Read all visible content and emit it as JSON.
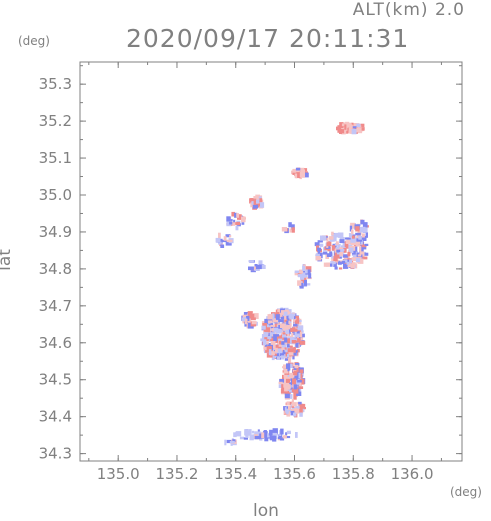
{
  "header": {
    "altitude_label": "ALT(km) 2.0",
    "timestamp": "2020/09/17 20:11:31"
  },
  "axes": {
    "y_unit": "(deg)",
    "x_unit": "(deg)",
    "x_title": "lon",
    "y_title": "lat"
  },
  "chart_data": {
    "type": "heatmap",
    "title": "2020/09/17 20:11:31",
    "xlabel": "lon",
    "ylabel": "lat",
    "xlim": [
      134.87,
      136.17
    ],
    "ylim": [
      34.28,
      35.36
    ],
    "x_ticks": [
      135.0,
      135.2,
      135.4,
      135.6,
      135.8,
      136.0
    ],
    "x_tick_labels": [
      "135.0",
      "135.2",
      "135.4",
      "135.6",
      "135.8",
      "136.0"
    ],
    "y_ticks": [
      34.3,
      34.4,
      34.5,
      34.6,
      34.7,
      34.8,
      34.9,
      35.0,
      35.1,
      35.2,
      35.3
    ],
    "y_tick_labels": [
      "34.3",
      "34.4",
      "34.5",
      "34.6",
      "34.7",
      "34.8",
      "34.9",
      "35.0",
      "35.1",
      "35.2",
      "35.3"
    ],
    "grid": false,
    "colors": {
      "positive": "#f08a8a",
      "negative": "#7f86f0",
      "light_positive": "#f7c4c4",
      "light_negative": "#c3c6f7"
    },
    "clusters": [
      {
        "lon": 135.79,
        "lat": 35.18,
        "r_lon": 0.05,
        "r_lat": 0.012,
        "n": 60,
        "pink": 0.95
      },
      {
        "lon": 135.62,
        "lat": 35.06,
        "r_lon": 0.025,
        "r_lat": 0.012,
        "n": 30,
        "pink": 0.9
      },
      {
        "lon": 135.47,
        "lat": 34.98,
        "r_lon": 0.025,
        "r_lat": 0.015,
        "n": 30,
        "pink": 0.85
      },
      {
        "lon": 135.4,
        "lat": 34.93,
        "r_lon": 0.03,
        "r_lat": 0.02,
        "n": 25,
        "pink": 0.5
      },
      {
        "lon": 135.36,
        "lat": 34.88,
        "r_lon": 0.025,
        "r_lat": 0.02,
        "n": 15,
        "pink": 0.4
      },
      {
        "lon": 135.58,
        "lat": 34.91,
        "r_lon": 0.02,
        "r_lat": 0.01,
        "n": 8,
        "pink": 0.5
      },
      {
        "lon": 135.76,
        "lat": 34.85,
        "r_lon": 0.09,
        "r_lat": 0.05,
        "n": 170,
        "pink": 0.35
      },
      {
        "lon": 135.82,
        "lat": 34.9,
        "r_lon": 0.03,
        "r_lat": 0.03,
        "n": 35,
        "pink": 0.4
      },
      {
        "lon": 135.63,
        "lat": 34.78,
        "r_lon": 0.025,
        "r_lat": 0.03,
        "n": 30,
        "pink": 0.45
      },
      {
        "lon": 135.47,
        "lat": 34.81,
        "r_lon": 0.025,
        "r_lat": 0.02,
        "n": 12,
        "pink": 0.4
      },
      {
        "lon": 135.56,
        "lat": 34.62,
        "r_lon": 0.07,
        "r_lat": 0.07,
        "n": 380,
        "pink": 0.5
      },
      {
        "lon": 135.59,
        "lat": 34.5,
        "r_lon": 0.04,
        "r_lat": 0.05,
        "n": 120,
        "pink": 0.5
      },
      {
        "lon": 135.6,
        "lat": 34.42,
        "r_lon": 0.035,
        "r_lat": 0.02,
        "n": 40,
        "pink": 0.55
      },
      {
        "lon": 135.45,
        "lat": 34.66,
        "r_lon": 0.025,
        "r_lat": 0.02,
        "n": 25,
        "pink": 0.4
      },
      {
        "lon": 135.38,
        "lat": 34.33,
        "r_lon": 0.02,
        "r_lat": 0.008,
        "n": 10,
        "pink": 0.5
      },
      {
        "lon": 135.5,
        "lat": 34.35,
        "r_lon": 0.11,
        "r_lat": 0.012,
        "n": 60,
        "pink": 0.1
      }
    ]
  }
}
